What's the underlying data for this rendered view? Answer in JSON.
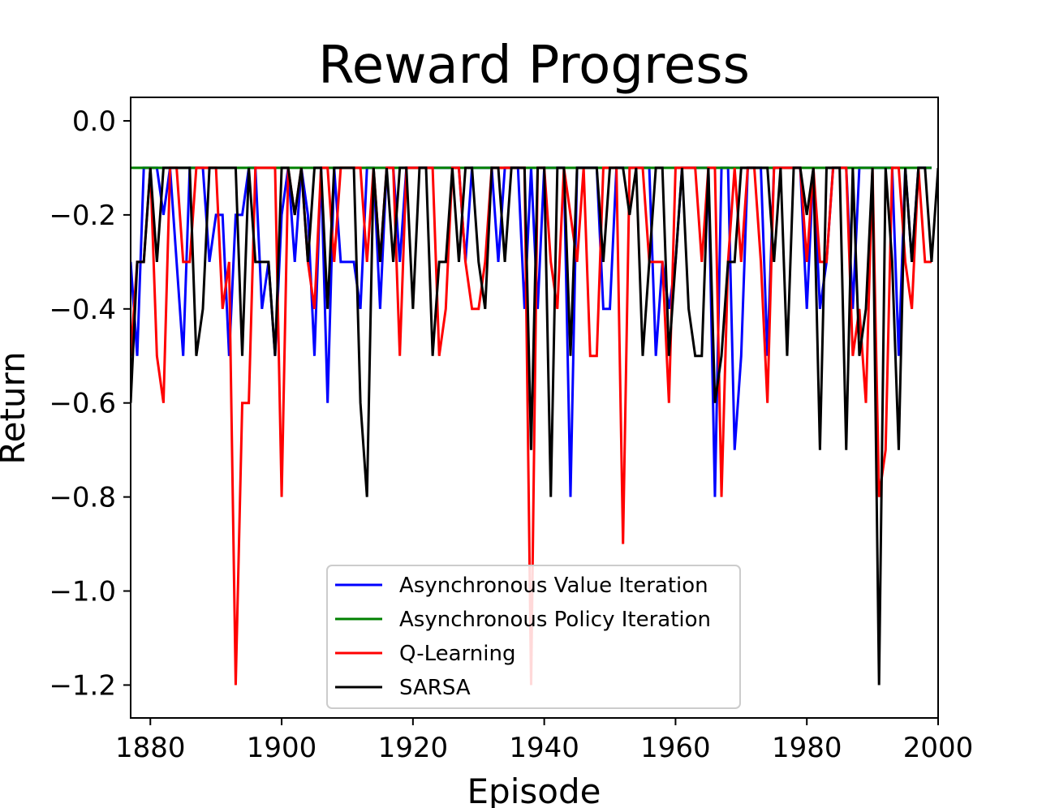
{
  "chart_data": {
    "type": "line",
    "title": "Reward Progress",
    "xlabel": "Episode",
    "ylabel": "Return",
    "xlim": [
      1877,
      2000
    ],
    "ylim": [
      -1.27,
      0.05
    ],
    "xticks": [
      1880,
      1900,
      1920,
      1940,
      1960,
      1980,
      2000
    ],
    "xtick_labels": [
      "1880",
      "1900",
      "1920",
      "1940",
      "1960",
      "1980",
      "2000"
    ],
    "yticks": [
      0.0,
      -0.2,
      -0.4,
      -0.6,
      -0.8,
      -1.0,
      -1.2
    ],
    "ytick_labels": [
      "0.0",
      "−0.2",
      "−0.4",
      "−0.6",
      "−0.8",
      "−1.0",
      "−1.2"
    ],
    "grid": false,
    "legend_position": "lower-center",
    "x_start": 1877,
    "series": [
      {
        "name": "Asynchronous Value Iteration",
        "color": "#0000ff",
        "values": [
          -0.3,
          -0.5,
          -0.1,
          -0.1,
          -0.1,
          -0.2,
          -0.1,
          -0.3,
          -0.5,
          -0.1,
          -0.1,
          -0.1,
          -0.3,
          -0.2,
          -0.2,
          -0.5,
          -0.2,
          -0.2,
          -0.1,
          -0.1,
          -0.4,
          -0.3,
          -0.5,
          -0.2,
          -0.1,
          -0.3,
          -0.1,
          -0.2,
          -0.5,
          -0.1,
          -0.6,
          -0.1,
          -0.3,
          -0.3,
          -0.3,
          -0.4,
          -0.1,
          -0.1,
          -0.4,
          -0.1,
          -0.1,
          -0.3,
          -0.1,
          -0.1,
          -0.1,
          -0.1,
          -0.1,
          -0.1,
          -0.1,
          -0.1,
          -0.1,
          -0.3,
          -0.1,
          -0.1,
          -0.1,
          -0.1,
          -0.3,
          -0.1,
          -0.1,
          -0.1,
          -0.4,
          -0.1,
          -0.4,
          -0.1,
          -0.1,
          -0.1,
          -0.1,
          -0.8,
          -0.1,
          -0.1,
          -0.1,
          -0.1,
          -0.4,
          -0.4,
          -0.1,
          -0.1,
          -0.1,
          -0.1,
          -0.1,
          -0.1,
          -0.5,
          -0.3,
          -0.4,
          -0.3,
          -0.1,
          -0.1,
          -0.1,
          -0.1,
          -0.1,
          -0.8,
          -0.1,
          -0.1,
          -0.7,
          -0.5,
          -0.1,
          -0.1,
          -0.1,
          -0.5,
          -0.1,
          -0.1,
          -0.1,
          -0.1,
          -0.1,
          -0.4,
          -0.1,
          -0.4,
          -0.3,
          -0.1,
          -0.1,
          -0.1,
          -0.4,
          -0.1,
          -0.1,
          -0.1,
          -0.1,
          -0.1,
          -0.1,
          -0.5,
          -0.1,
          -0.3,
          -0.1,
          -0.1,
          -0.1
        ]
      },
      {
        "name": "Asynchronous Policy Iteration",
        "color": "#008000",
        "values": [
          -0.1,
          -0.1,
          -0.1,
          -0.1,
          -0.1,
          -0.1,
          -0.1,
          -0.1,
          -0.1,
          -0.1,
          -0.1,
          -0.1,
          -0.1,
          -0.1,
          -0.1,
          -0.1,
          -0.1,
          -0.1,
          -0.1,
          -0.1,
          -0.1,
          -0.1,
          -0.1,
          -0.1,
          -0.1,
          -0.1,
          -0.1,
          -0.1,
          -0.1,
          -0.1,
          -0.1,
          -0.1,
          -0.1,
          -0.1,
          -0.1,
          -0.1,
          -0.1,
          -0.1,
          -0.1,
          -0.1,
          -0.1,
          -0.1,
          -0.1,
          -0.1,
          -0.1,
          -0.1,
          -0.1,
          -0.1,
          -0.1,
          -0.1,
          -0.1,
          -0.1,
          -0.1,
          -0.1,
          -0.1,
          -0.1,
          -0.1,
          -0.1,
          -0.1,
          -0.1,
          -0.1,
          -0.1,
          -0.1,
          -0.1,
          -0.1,
          -0.1,
          -0.1,
          -0.1,
          -0.1,
          -0.1,
          -0.1,
          -0.1,
          -0.1,
          -0.1,
          -0.1,
          -0.1,
          -0.1,
          -0.1,
          -0.1,
          -0.1,
          -0.1,
          -0.1,
          -0.1,
          -0.1,
          -0.1,
          -0.1,
          -0.1,
          -0.1,
          -0.1,
          -0.1,
          -0.1,
          -0.1,
          -0.1,
          -0.1,
          -0.1,
          -0.1,
          -0.1,
          -0.1,
          -0.1,
          -0.1,
          -0.1,
          -0.1,
          -0.1,
          -0.1,
          -0.1,
          -0.1,
          -0.1,
          -0.1,
          -0.1,
          -0.1,
          -0.1,
          -0.1,
          -0.1,
          -0.1,
          -0.1,
          -0.1,
          -0.1,
          -0.1,
          -0.1,
          -0.1,
          -0.1,
          -0.1,
          -0.1
        ]
      },
      {
        "name": "Q-Learning",
        "color": "#ff0000",
        "values": [
          -0.5,
          -0.3,
          -0.3,
          -0.1,
          -0.5,
          -0.6,
          -0.1,
          -0.1,
          -0.3,
          -0.3,
          -0.1,
          -0.1,
          -0.1,
          -0.1,
          -0.4,
          -0.3,
          -1.2,
          -0.6,
          -0.6,
          -0.1,
          -0.1,
          -0.1,
          -0.1,
          -0.8,
          -0.1,
          -0.2,
          -0.1,
          -0.3,
          -0.4,
          -0.1,
          -0.1,
          -0.3,
          -0.1,
          -0.1,
          -0.1,
          -0.1,
          -0.3,
          -0.1,
          -0.3,
          -0.1,
          -0.1,
          -0.5,
          -0.1,
          -0.1,
          -0.1,
          -0.1,
          -0.1,
          -0.5,
          -0.4,
          -0.1,
          -0.1,
          -0.3,
          -0.4,
          -0.4,
          -0.3,
          -0.1,
          -0.1,
          -0.1,
          -0.1,
          -0.1,
          -0.1,
          -1.2,
          -0.1,
          -0.1,
          -0.3,
          -0.4,
          -0.1,
          -0.2,
          -0.3,
          -0.1,
          -0.5,
          -0.5,
          -0.1,
          -0.1,
          -0.1,
          -0.9,
          -0.1,
          -0.1,
          -0.1,
          -0.3,
          -0.3,
          -0.3,
          -0.6,
          -0.1,
          -0.1,
          -0.1,
          -0.1,
          -0.3,
          -0.1,
          -0.1,
          -0.8,
          -0.3,
          -0.1,
          -0.3,
          -0.1,
          -0.1,
          -0.3,
          -0.6,
          -0.1,
          -0.1,
          -0.1,
          -0.1,
          -0.1,
          -0.3,
          -0.1,
          -0.3,
          -0.3,
          -0.1,
          -0.1,
          -0.1,
          -0.5,
          -0.4,
          -0.6,
          -0.1,
          -0.8,
          -0.7,
          -0.1,
          -0.1,
          -0.3,
          -0.4,
          -0.1,
          -0.3,
          -0.3
        ]
      },
      {
        "name": "SARSA",
        "color": "#000000",
        "values": [
          -0.6,
          -0.3,
          -0.3,
          -0.1,
          -0.3,
          -0.1,
          -0.1,
          -0.1,
          -0.1,
          -0.1,
          -0.5,
          -0.4,
          -0.1,
          -0.1,
          -0.1,
          -0.1,
          -0.1,
          -0.5,
          -0.1,
          -0.3,
          -0.3,
          -0.3,
          -0.5,
          -0.1,
          -0.1,
          -0.2,
          -0.1,
          -0.3,
          -0.1,
          -0.1,
          -0.4,
          -0.1,
          -0.1,
          -0.1,
          -0.1,
          -0.6,
          -0.8,
          -0.1,
          -0.3,
          -0.1,
          -0.3,
          -0.1,
          -0.1,
          -0.4,
          -0.1,
          -0.1,
          -0.5,
          -0.3,
          -0.3,
          -0.1,
          -0.3,
          -0.1,
          -0.1,
          -0.3,
          -0.4,
          -0.1,
          -0.1,
          -0.3,
          -0.1,
          -0.1,
          -0.1,
          -0.7,
          -0.1,
          -0.1,
          -0.8,
          -0.1,
          -0.1,
          -0.5,
          -0.1,
          -0.1,
          -0.1,
          -0.1,
          -0.3,
          -0.1,
          -0.1,
          -0.1,
          -0.2,
          -0.1,
          -0.5,
          -0.3,
          -0.1,
          -0.1,
          -0.5,
          -0.3,
          -0.1,
          -0.4,
          -0.5,
          -0.5,
          -0.1,
          -0.6,
          -0.5,
          -0.3,
          -0.3,
          -0.1,
          -0.1,
          -0.1,
          -0.1,
          -0.1,
          -0.3,
          -0.1,
          -0.5,
          -0.1,
          -0.1,
          -0.2,
          -0.1,
          -0.7,
          -0.1,
          -0.1,
          -0.1,
          -0.7,
          -0.1,
          -0.5,
          -0.4,
          -0.1,
          -1.2,
          -0.1,
          -0.3,
          -0.7,
          -0.1,
          -0.3,
          -0.1,
          -0.1,
          -0.3,
          -0.1
        ]
      }
    ]
  }
}
